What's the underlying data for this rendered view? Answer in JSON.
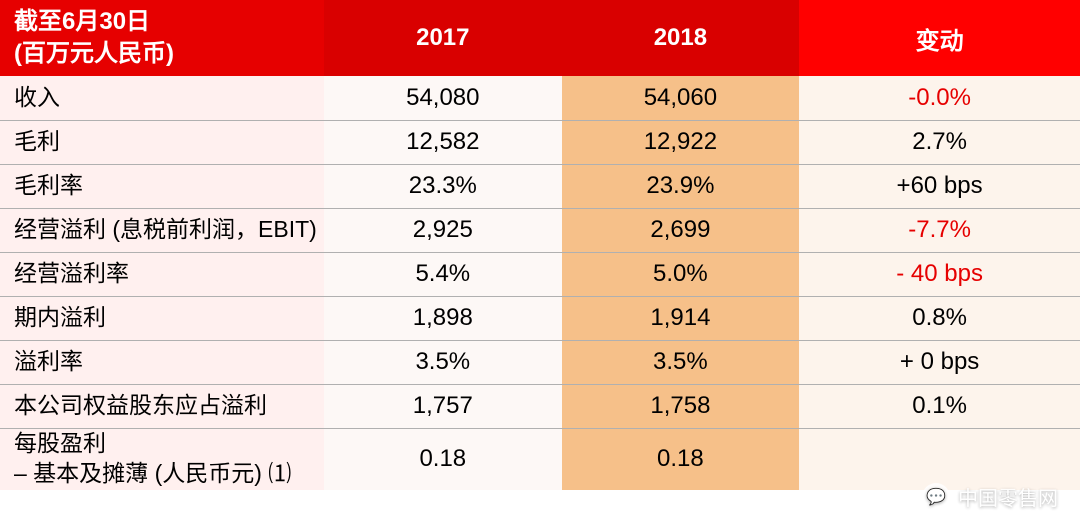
{
  "table": {
    "type": "table",
    "background_color": "#ffffff",
    "border_color": "#b0b0b0",
    "columns": [
      {
        "key": "label",
        "header_line1": "截至6月30日",
        "header_line2": "(百万元人民币)",
        "width": "30%"
      },
      {
        "key": "y2017",
        "header": "2017",
        "width": "22%"
      },
      {
        "key": "y2018",
        "header": "2018",
        "width": "22%"
      },
      {
        "key": "change",
        "header": "变动",
        "width": "26%"
      }
    ],
    "header_style": {
      "bg_left": "#e60000",
      "bg_mid": "#d90000",
      "bg_right": "#ff0000",
      "text_color": "#ffffff",
      "font_size": 24,
      "font_weight": "bold"
    },
    "body_style": {
      "row_bg_label": "#fff0ef",
      "row_bg_2017": "#fdf8f6",
      "row_bg_2018": "#f6c089",
      "row_bg_change": "#fdf4ec",
      "font_size": 24,
      "text_color": "#000000",
      "neg_color": "#e60000"
    },
    "rows": [
      {
        "label": "收入",
        "y2017": "54,080",
        "y2018": "54,060",
        "change": "-0.0%",
        "neg": true
      },
      {
        "label": "毛利",
        "y2017": "12,582",
        "y2018": "12,922",
        "change": "2.7%",
        "neg": false
      },
      {
        "label": "毛利率",
        "y2017": "23.3%",
        "y2018": "23.9%",
        "change": "+60 bps",
        "neg": false
      },
      {
        "label": "经营溢利 (息税前利润，EBIT)",
        "y2017": "2,925",
        "y2018": "2,699",
        "change": "-7.7%",
        "neg": true
      },
      {
        "label": "经营溢利率",
        "y2017": "5.4%",
        "y2018": "5.0%",
        "change": "- 40 bps",
        "neg": true
      },
      {
        "label": "期内溢利",
        "y2017": "1,898",
        "y2018": "1,914",
        "change": "0.8%",
        "neg": false
      },
      {
        "label": "溢利率",
        "y2017": "3.5%",
        "y2018": "3.5%",
        "change": "+ 0 bps",
        "neg": false
      },
      {
        "label": "本公司权益股东应占溢利",
        "y2017": "1,757",
        "y2018": "1,758",
        "change": "0.1%",
        "neg": false
      },
      {
        "label_line1": "每股盈利",
        "label_line2": "– 基本及摊薄 (人民币元) ⑴",
        "y2017": "0.18",
        "y2018": "0.18",
        "change": "",
        "neg": false
      }
    ]
  },
  "watermark": {
    "text": "中国零售网",
    "icon": "💬"
  }
}
